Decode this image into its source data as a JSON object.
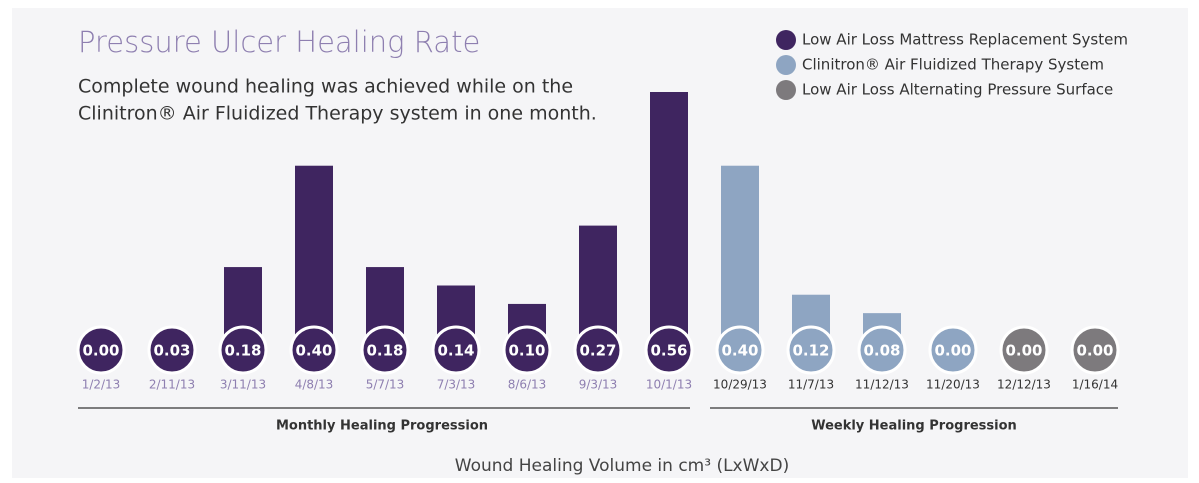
{
  "chart_data": {
    "type": "bar",
    "title": "Pressure Ulcer Healing Rate",
    "subtitle": [
      "Complete wound healing was achieved while on the",
      "Clinitron® Air Fluidized Therapy system in one month."
    ],
    "categories": [
      "1/2/13",
      "2/11/13",
      "3/11/13",
      "4/8/13",
      "5/7/13",
      "7/3/13",
      "8/6/13",
      "9/3/13",
      "10/1/13",
      "10/29/13",
      "11/7/13",
      "11/12/13",
      "11/20/13",
      "12/12/13",
      "1/16/14"
    ],
    "series": [
      {
        "name": "Low Air Loss Mattress Replacement System",
        "color": "#3f2560",
        "values": [
          0.0,
          0.03,
          0.18,
          0.4,
          0.18,
          0.14,
          0.1,
          0.27,
          0.56,
          null,
          null,
          null,
          null,
          null,
          null
        ],
        "value_labels": [
          "0.00",
          "0.03",
          "0.18",
          "0.40",
          "0.18",
          "0.14",
          "0.10",
          "0.27",
          "0.56",
          null,
          null,
          null,
          null,
          null,
          null
        ]
      },
      {
        "name": "Clinitron® Air Fluidized Therapy System",
        "color": "#8ea5c2",
        "values": [
          null,
          null,
          null,
          null,
          null,
          null,
          null,
          null,
          null,
          0.4,
          0.12,
          0.08,
          0.0,
          null,
          null
        ],
        "value_labels": [
          null,
          null,
          null,
          null,
          null,
          null,
          null,
          null,
          null,
          "0.40",
          "0.12",
          "0.08",
          "0.00",
          null,
          null
        ]
      },
      {
        "name": "Low Air Loss Alternating Pressure Surface",
        "color": "#7d7a7d",
        "values": [
          null,
          null,
          null,
          null,
          null,
          null,
          null,
          null,
          null,
          null,
          null,
          null,
          null,
          0.0,
          0.0
        ],
        "value_labels": [
          null,
          null,
          null,
          null,
          null,
          null,
          null,
          null,
          null,
          null,
          null,
          null,
          null,
          "0.00",
          "0.00"
        ]
      }
    ],
    "groups": [
      "Monthly Healing Progression",
      "Weekly Healing Progression"
    ],
    "x_label": "Wound Healing Volume in cm³ (LxWxD)"
  }
}
